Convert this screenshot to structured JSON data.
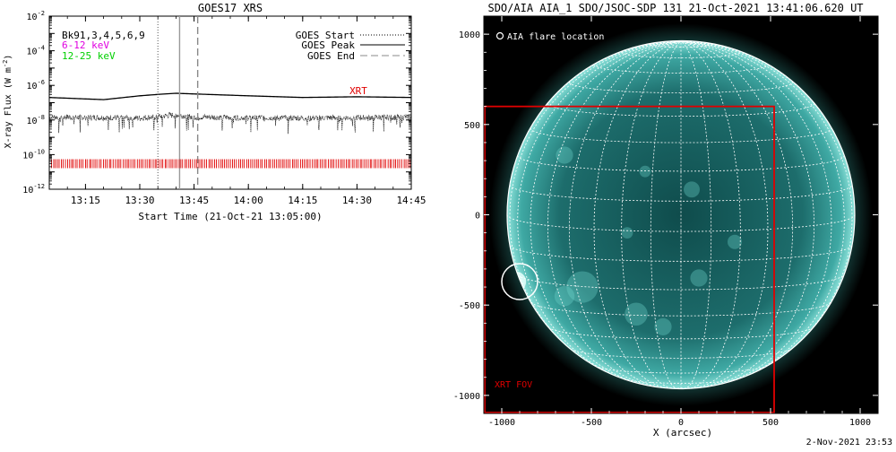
{
  "goes_panel": {
    "title": "GOES17 XRS",
    "ylabel": "X-ray Flux (W m",
    "ylabel_sup": "-2",
    "ylabel_end": ")",
    "xlabel": "Start Time (21-Oct-21 13:05:00)",
    "legend_left": [
      {
        "text": "Bk91,3,4,5,6,9",
        "color": "#000000"
      },
      {
        "text": "6-12 keV",
        "color": "#e000e0"
      },
      {
        "text": "12-25 keV",
        "color": "#00d000"
      }
    ],
    "legend_right": [
      {
        "text": "GOES Start",
        "style": "dotted"
      },
      {
        "text": "GOES Peak",
        "style": "solid"
      },
      {
        "text": "GOES End",
        "style": "dashed"
      }
    ],
    "xrt_label": "XRT",
    "y_ticks": [
      {
        "base": "10",
        "exp": "-2"
      },
      {
        "base": "10",
        "exp": "-4"
      },
      {
        "base": "10",
        "exp": "-6"
      },
      {
        "base": "10",
        "exp": "-8"
      },
      {
        "base": "10",
        "exp": "-10"
      },
      {
        "base": "10",
        "exp": "-12"
      }
    ],
    "x_ticks": [
      "13:15",
      "13:30",
      "13:45",
      "14:00",
      "14:15",
      "14:30",
      "14:45"
    ]
  },
  "sun_panel": {
    "title": "SDO/AIA AIA_1 SDO/JSOC-SDP 131 21-Oct-2021 13:41:06.620 UT",
    "flare_legend": "AIA flare location",
    "fov_label": "XRT FOV",
    "xlabel": "X (arcsec)",
    "x_ticks": [
      "-1000",
      "-500",
      "0",
      "500",
      "1000"
    ],
    "y_ticks": [
      "1000",
      "500",
      "0",
      "-500",
      "-1000"
    ]
  },
  "footer": {
    "timestamp": "2-Nov-2021 23:53"
  },
  "colors": {
    "xrt_red": "#e00000",
    "aia_teal": "#3fb8b0",
    "sky_black": "#000000"
  },
  "chart_data": [
    {
      "type": "line",
      "title": "GOES17 XRS",
      "xlabel": "Start Time (21-Oct-21 13:05:00)",
      "ylabel": "X-ray Flux (W m^-2)",
      "y_scale": "log",
      "ylim": [
        1e-12,
        0.01
      ],
      "xlim": [
        "13:05",
        "14:45"
      ],
      "series": [
        {
          "name": "12-25 keV",
          "x": [
            "13:05",
            "13:20",
            "13:30",
            "13:35",
            "13:40",
            "13:45",
            "14:00",
            "14:15",
            "14:30",
            "14:45"
          ],
          "y": [
            2e-07,
            1.5e-07,
            2.5e-07,
            3e-07,
            3.5e-07,
            3.2e-07,
            2.5e-07,
            2e-07,
            2.2e-07,
            2e-07
          ]
        },
        {
          "name": "6-12 keV",
          "x": [
            "13:05",
            "13:20",
            "13:30",
            "13:35",
            "13:40",
            "13:45",
            "14:00",
            "14:15",
            "14:30",
            "14:45"
          ],
          "y": [
            1.5e-08,
            1.4e-08,
            1.3e-08,
            1.6e-08,
            2e-08,
            1.5e-08,
            1.4e-08,
            1.3e-08,
            1.4e-08,
            1.5e-08
          ]
        }
      ],
      "vertical_markers": [
        {
          "name": "GOES Start",
          "x": "13:35",
          "style": "dotted"
        },
        {
          "name": "GOES Peak",
          "x": "13:41",
          "style": "solid"
        },
        {
          "name": "GOES End",
          "x": "13:46",
          "style": "dashed"
        }
      ],
      "xrt_observations_flux_level": 3e-11
    },
    {
      "type": "image",
      "title": "SDO/AIA AIA_1 SDO/JSOC-SDP 131 21-Oct-2021 13:41:06.620 UT",
      "xlabel": "X (arcsec)",
      "xlim": [
        -1100,
        1100
      ],
      "ylim": [
        -1100,
        1100
      ],
      "solar_radius_arcsec": 970,
      "grid_spacing_deg": 10,
      "flare_location": {
        "x": -900,
        "y": -370,
        "radius": 80
      },
      "xrt_fov": {
        "x": [
          -1100,
          520
        ],
        "y": [
          -1100,
          600
        ]
      }
    }
  ]
}
